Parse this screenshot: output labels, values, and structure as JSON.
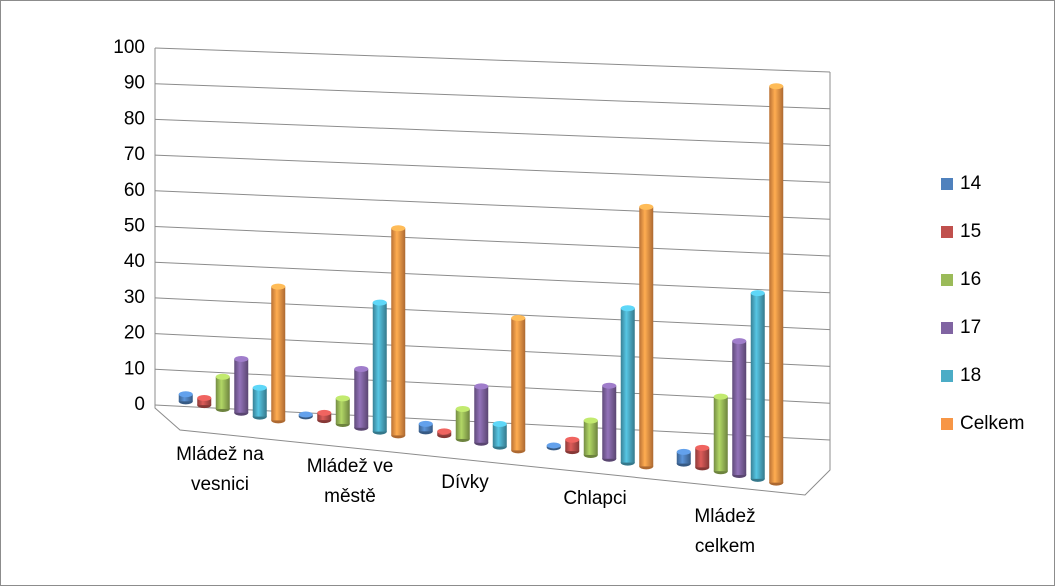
{
  "chart_data": {
    "type": "bar3d",
    "categories": [
      "Mládež na vesnici",
      "Mládež ve městě",
      "Dívky",
      "Chlapci",
      "Mládež celkem"
    ],
    "series": [
      {
        "name": "14",
        "color": "#4f81bd",
        "values": [
          2,
          0.5,
          2,
          0.5,
          3
        ]
      },
      {
        "name": "15",
        "color": "#c0504d",
        "values": [
          2,
          2,
          1,
          3,
          5
        ]
      },
      {
        "name": "16",
        "color": "#9bbb59",
        "values": [
          9,
          7,
          8,
          9,
          19
        ]
      },
      {
        "name": "17",
        "color": "#8064a2",
        "values": [
          15,
          16,
          15,
          19,
          34
        ]
      },
      {
        "name": "18",
        "color": "#4bacc6",
        "values": [
          8,
          35,
          6,
          40,
          47
        ]
      },
      {
        "name": "Celkem",
        "color": "#f79646",
        "values": [
          37,
          56,
          35,
          67,
          100
        ]
      }
    ],
    "ylim": [
      0,
      100
    ],
    "yticks": [
      0,
      10,
      20,
      30,
      40,
      50,
      60,
      70,
      80,
      90,
      100
    ],
    "grid": true,
    "legend": "right"
  }
}
